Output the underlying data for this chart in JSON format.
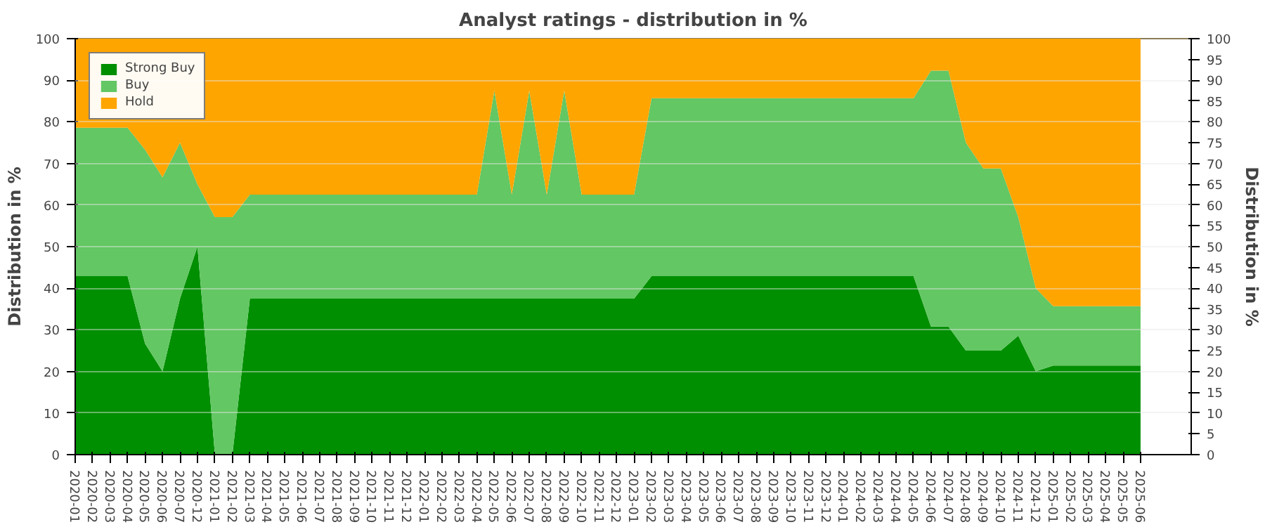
{
  "chart_data": {
    "type": "area",
    "stacked": true,
    "title": "Analyst ratings - distribution in %",
    "ylabel": "Distribution in %",
    "y2label": "Distribution in %",
    "categories": [
      "2020-01",
      "2020-02",
      "2020-03",
      "2020-04",
      "2020-05",
      "2020-06",
      "2020-07",
      "2020-12",
      "2021-01",
      "2021-02",
      "2021-03",
      "2021-04",
      "2021-05",
      "2021-06",
      "2021-07",
      "2021-08",
      "2021-09",
      "2021-10",
      "2021-11",
      "2021-12",
      "2022-01",
      "2022-02",
      "2022-03",
      "2022-04",
      "2022-05",
      "2022-06",
      "2022-07",
      "2022-08",
      "2022-09",
      "2022-10",
      "2022-11",
      "2022-12",
      "2023-01",
      "2023-02",
      "2023-03",
      "2023-04",
      "2023-05",
      "2023-06",
      "2023-07",
      "2023-08",
      "2023-09",
      "2023-10",
      "2023-11",
      "2023-12",
      "2024-01",
      "2024-02",
      "2024-03",
      "2024-04",
      "2024-05",
      "2024-06",
      "2024-07",
      "2024-08",
      "2024-09",
      "2024-10",
      "2024-11",
      "2024-12",
      "2025-01",
      "2025-02",
      "2025-03",
      "2025-04",
      "2025-05",
      "2025-06"
    ],
    "series": [
      {
        "name": "Strong Buy",
        "color": "#008f00",
        "values": [
          42.9,
          42.9,
          42.9,
          42.9,
          26.7,
          20,
          37.5,
          50,
          0,
          0,
          37.5,
          37.5,
          37.5,
          37.5,
          37.5,
          37.5,
          37.5,
          37.5,
          37.5,
          37.5,
          37.5,
          37.5,
          37.5,
          37.5,
          37.5,
          37.5,
          37.5,
          37.5,
          37.5,
          37.5,
          37.5,
          37.5,
          37.5,
          42.9,
          42.9,
          42.9,
          42.9,
          42.9,
          42.9,
          42.9,
          42.9,
          42.9,
          42.9,
          42.9,
          42.9,
          42.9,
          42.9,
          42.9,
          42.9,
          30.8,
          30.8,
          25,
          25,
          25,
          28.6,
          20,
          21.4,
          21.4,
          21.4,
          21.4,
          21.4,
          21.4
        ]
      },
      {
        "name": "Buy",
        "color": "#63c763",
        "values": [
          35.7,
          35.7,
          35.7,
          35.7,
          46.6,
          46.7,
          37.5,
          15,
          57.1,
          57.1,
          25,
          25,
          25,
          25,
          25,
          25,
          25,
          25,
          25,
          25,
          25,
          25,
          25,
          25,
          50,
          25,
          50,
          25,
          50,
          25,
          25,
          25,
          25,
          42.8,
          42.8,
          42.8,
          42.8,
          42.8,
          42.8,
          42.8,
          42.8,
          42.8,
          42.8,
          42.8,
          42.8,
          42.8,
          42.8,
          42.8,
          42.8,
          61.5,
          61.5,
          50,
          43.8,
          43.8,
          28.5,
          20,
          14.3,
          14.3,
          14.3,
          14.3,
          14.3,
          14.3
        ]
      },
      {
        "name": "Hold",
        "color": "#ffa500",
        "values": [
          21.4,
          21.4,
          21.4,
          21.4,
          26.7,
          33.3,
          25,
          35,
          42.9,
          42.9,
          37.5,
          37.5,
          37.5,
          37.5,
          37.5,
          37.5,
          37.5,
          37.5,
          37.5,
          37.5,
          37.5,
          37.5,
          37.5,
          37.5,
          12.5,
          37.5,
          12.5,
          37.5,
          12.5,
          37.5,
          37.5,
          37.5,
          37.5,
          14.3,
          14.3,
          14.3,
          14.3,
          14.3,
          14.3,
          14.3,
          14.3,
          14.3,
          14.3,
          14.3,
          14.3,
          14.3,
          14.3,
          14.3,
          14.3,
          7.7,
          7.7,
          25,
          31.2,
          31.2,
          42.9,
          60,
          64.3,
          64.3,
          64.3,
          64.3,
          64.3,
          64.3
        ]
      }
    ],
    "ylim": [
      0,
      100
    ],
    "yticks": [
      0,
      10,
      20,
      30,
      40,
      50,
      60,
      70,
      80,
      90,
      100
    ],
    "y2lim": [
      0,
      100
    ],
    "y2ticks": [
      0,
      5,
      10,
      15,
      20,
      25,
      30,
      35,
      40,
      45,
      50,
      55,
      60,
      65,
      70,
      75,
      80,
      85,
      90,
      95,
      100
    ],
    "grid": "y",
    "legend": "top left"
  }
}
